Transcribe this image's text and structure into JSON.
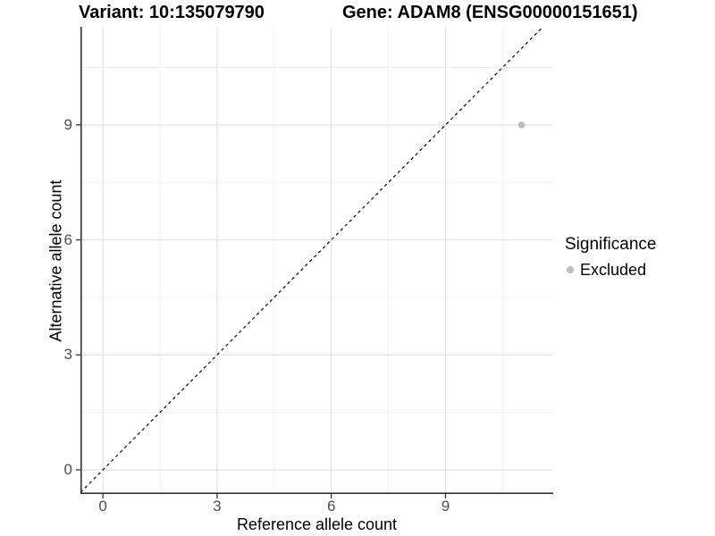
{
  "header": {
    "title_left": "Variant: 10:135079790",
    "title_right": "Gene: ADAM8 (ENSG00000151651)"
  },
  "chart_data": {
    "type": "scatter",
    "title_left": "Variant: 10:135079790",
    "title_right": "Gene: ADAM8 (ENSG00000151651)",
    "xlabel": "Reference allele count",
    "ylabel": "Alternative allele count",
    "x_ticks": [
      0,
      3,
      6,
      9
    ],
    "y_ticks": [
      0,
      3,
      6,
      9
    ],
    "x_minor_gridlines": [
      1.5,
      4.5,
      7.5,
      10.5
    ],
    "y_minor_gridlines": [
      1.5,
      4.5,
      7.5,
      10.5
    ],
    "xlim": [
      -0.59,
      11.83
    ],
    "ylim": [
      -0.63,
      11.56
    ],
    "grid": true,
    "identity_line": {
      "slope": 1,
      "intercept": 0,
      "style": "dashed",
      "color": "#000000"
    },
    "series": [
      {
        "name": "Excluded",
        "color": "#bebebe",
        "points": [
          {
            "x": 11,
            "y": 9
          }
        ]
      }
    ],
    "legend": {
      "title": "Significance",
      "position": "right",
      "entries": [
        {
          "label": "Excluded",
          "color": "#bebebe"
        }
      ]
    },
    "colors": {
      "panel_background": "#ffffff",
      "grid_major": "#e3e3e3",
      "grid_minor": "#f1f1f1",
      "axis_line": "#333333",
      "tick_mark": "#333333",
      "tick_label": "#4d4d4d",
      "point": "#bebebe"
    }
  }
}
